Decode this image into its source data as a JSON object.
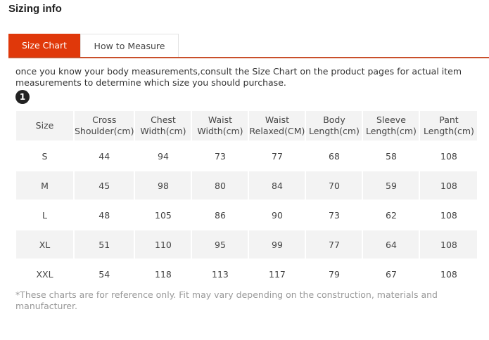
{
  "title": "Sizing info",
  "tabs": [
    {
      "label": "Size Chart",
      "active": true
    },
    {
      "label": "How to Measure",
      "active": false
    }
  ],
  "accent_color": "#e0380a",
  "intro": "once you know your body measurements,consult the Size Chart on the product pages for actual item measurements to determine which size you should purchase.",
  "step_badge": "1",
  "table": {
    "headers": [
      [
        "Size"
      ],
      [
        "Cross",
        "Shoulder(cm)"
      ],
      [
        "Chest",
        "Width(cm)"
      ],
      [
        "Waist",
        "Width(cm)"
      ],
      [
        "Waist",
        "Relaxed(CM)"
      ],
      [
        "Body",
        "Length(cm)"
      ],
      [
        "Sleeve",
        "Length(cm)"
      ],
      [
        "Pant",
        "Length(cm)"
      ]
    ],
    "rows": [
      [
        "S",
        "44",
        "94",
        "73",
        "77",
        "68",
        "58",
        "108"
      ],
      [
        "M",
        "45",
        "98",
        "80",
        "84",
        "70",
        "59",
        "108"
      ],
      [
        "L",
        "48",
        "105",
        "86",
        "90",
        "73",
        "62",
        "108"
      ],
      [
        "XL",
        "51",
        "110",
        "95",
        "99",
        "77",
        "64",
        "108"
      ],
      [
        "XXL",
        "54",
        "118",
        "113",
        "117",
        "79",
        "67",
        "108"
      ]
    ]
  },
  "note": "*These charts are for reference only. Fit may vary depending on the construction, materials and manufacturer."
}
